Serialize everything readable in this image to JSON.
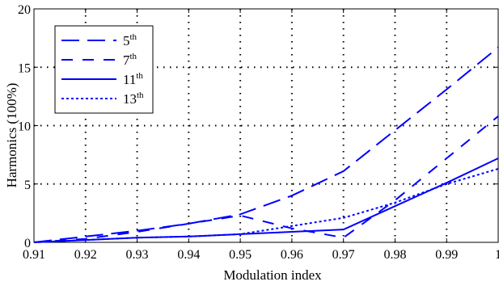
{
  "chart_data": {
    "type": "line",
    "xlabel": "Modulation index",
    "ylabel": "Harmonics (100%)",
    "xlim": [
      0.91,
      1.0
    ],
    "ylim": [
      0,
      20
    ],
    "xticks": [
      "0.91",
      "0.92",
      "0.93",
      "0.94",
      "0.95",
      "0.96",
      "0.97",
      "0.98",
      "0.99",
      "1"
    ],
    "yticks": [
      "0",
      "5",
      "10",
      "15",
      "20"
    ],
    "grid": true,
    "legend_position": "top-left",
    "line_color": "#0000ff",
    "series": [
      {
        "name": "5",
        "name_sup": "th",
        "dash": "long-dash",
        "x": [
          0.91,
          0.92,
          0.93,
          0.94,
          0.95,
          0.96,
          0.97,
          0.98,
          0.99,
          1.0
        ],
        "values": [
          0.0,
          0.5,
          1.0,
          1.6,
          2.4,
          4.0,
          6.1,
          9.6,
          13.1,
          16.7
        ]
      },
      {
        "name": "7",
        "name_sup": "th",
        "dash": "dash",
        "x": [
          0.91,
          0.92,
          0.93,
          0.94,
          0.95,
          0.96,
          0.97,
          0.98,
          0.99,
          1.0
        ],
        "values": [
          0.0,
          0.3,
          0.9,
          1.6,
          2.3,
          1.2,
          0.4,
          3.6,
          7.2,
          10.8
        ]
      },
      {
        "name": "11",
        "name_sup": "th",
        "dash": "solid",
        "x": [
          0.91,
          0.92,
          0.93,
          0.94,
          0.95,
          0.96,
          0.97,
          0.98,
          0.99,
          1.0
        ],
        "values": [
          0.0,
          0.2,
          0.4,
          0.5,
          0.7,
          0.9,
          1.1,
          3.1,
          5.1,
          7.2
        ]
      },
      {
        "name": "13",
        "name_sup": "th",
        "dash": "dotted",
        "x": [
          0.91,
          0.92,
          0.93,
          0.94,
          0.95,
          0.96,
          0.97,
          0.98,
          0.99,
          1.0
        ],
        "values": [
          0.0,
          0.2,
          0.4,
          0.5,
          0.7,
          1.4,
          2.1,
          3.4,
          5.0,
          6.3
        ]
      }
    ]
  }
}
